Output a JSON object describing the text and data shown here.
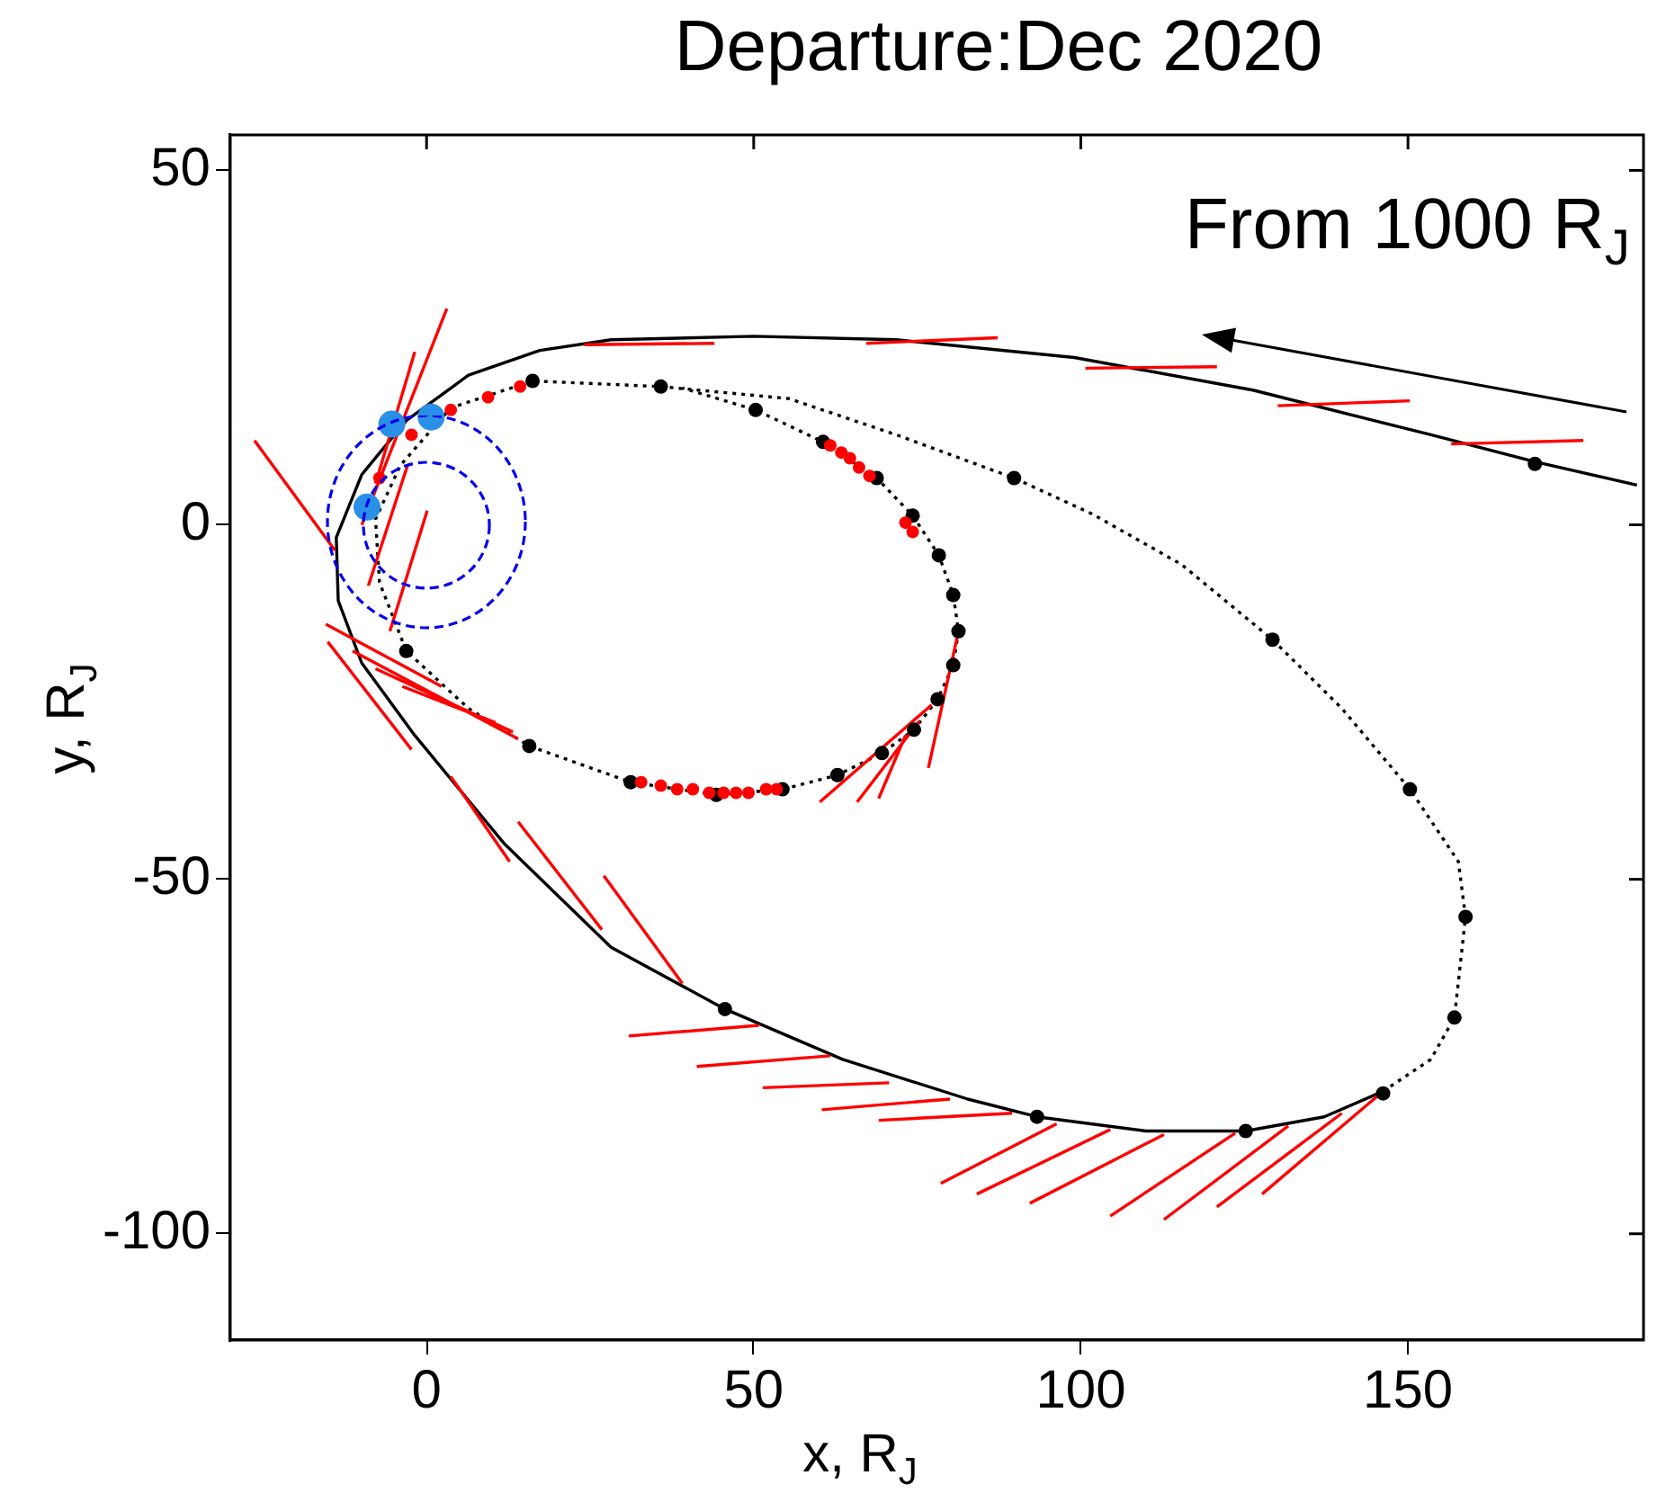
{
  "chart_data": {
    "type": "line",
    "title": "Departure:Dec 2020",
    "xlabel": "x, R$_{J}$",
    "ylabel": "y, R$_{J}$",
    "xlim": [
      -30,
      186
    ],
    "ylim": [
      -115,
      55
    ],
    "xticks": [
      0,
      50,
      100,
      150
    ],
    "yticks": [
      -100,
      -50,
      0,
      50
    ],
    "annotations": [
      "From 1000 R$_{J}$"
    ],
    "series": [
      {
        "type": "line",
        "color": "#000000",
        "line_style": "solid",
        "marker": "none",
        "x": [
          185.0,
          169.4,
          153.5,
          126.3,
          99.0,
          71.8,
          50.0,
          28.2,
          17.3,
          6.4,
          -3.1,
          -9.9,
          -13.8,
          -13.5,
          -9.9,
          -1.8,
          11.8,
          28.2,
          45.6,
          63.6,
          82.7,
          93.3,
          109.9,
          125.2,
          137.2,
          146.2
        ],
        "values": [
          5.6,
          8.9,
          12.7,
          19.0,
          23.6,
          26.1,
          26.6,
          26.1,
          24.6,
          21.1,
          14.7,
          7.1,
          -1.8,
          -10.7,
          -19.5,
          -29.7,
          -44.9,
          -59.6,
          -68.3,
          -75.4,
          -81.0,
          -83.5,
          -85.5,
          -85.5,
          -83.5,
          -79.9
        ]
      },
      {
        "type": "line",
        "color": "#000000",
        "line_style": "dotted",
        "marker": "none",
        "x": [
          146.2,
          153.5,
          157.1,
          158.8,
          157.7,
          150.3,
          139.9,
          129.3,
          115.4,
          101.8,
          89.8,
          71.8,
          55.4,
          35.8,
          16.2,
          3.7,
          -4.0,
          -7.8,
          -7.2,
          -3.1,
          6.4,
          15.7,
          31.2,
          44.3,
          54.4,
          62.8,
          69.6,
          74.5,
          78.1,
          80.5,
          81.3,
          80.5,
          78.3,
          74.3,
          68.8,
          60.6,
          50.3,
          39.1
        ],
        "values": [
          -79.9,
          -75.4,
          -69.5,
          -55.3,
          -47.5,
          -37.3,
          -25.9,
          -16.2,
          -5.6,
          1.5,
          6.6,
          12.7,
          17.8,
          19.5,
          20.3,
          16.5,
          8.4,
          0.8,
          -8.1,
          -17.8,
          -25.9,
          -31.2,
          -36.3,
          -38.1,
          -37.3,
          -35.3,
          -32.2,
          -28.9,
          -24.6,
          -19.8,
          -15.0,
          -9.9,
          -4.3,
          1.3,
          6.6,
          11.7,
          16.2,
          19.3
        ]
      },
      {
        "type": "line",
        "color": "#ff0000",
        "line_style": "solid",
        "marker": "none",
        "x": [
          24.1,
          44.0,
          null,
          67.2,
          87.3,
          null,
          100.7,
          120.8,
          null,
          130.1,
          150.3,
          null,
          156.6,
          176.8,
          null,
          -26.3,
          -14.0,
          null,
          -8.9,
          -2.9,
          null,
          -5.6,
          0.1,
          null,
          -9.9,
          3.1,
          null,
          -7.8,
          -1.8,
          null,
          2.3,
          -15.4,
          null,
          -2.3,
          -15.1,
          null,
          14.0,
          -11.3,
          null,
          13.2,
          -7.8,
          null,
          10.5,
          -3.7,
          null,
          12.7,
          3.7,
          null,
          26.8,
          14.0,
          null,
          39.1,
          27.1,
          null,
          50.8,
          30.9,
          null,
          61.7,
          41.3,
          null,
          70.7,
          51.4,
          null,
          80.0,
          60.4,
          null,
          89.5,
          69.1,
          null,
          96.3,
          78.6,
          null,
          104.5,
          84.1,
          null,
          112.7,
          92.2,
          null,
          123.6,
          104.5,
          null,
          131.7,
          112.7,
          null,
          139.9,
          120.8,
          null,
          146.2,
          127.7,
          null,
          77.2,
          60.1,
          null,
          75.3,
          65.8,
          null,
          73.2,
          69.1,
          null,
          81.3,
          76.7
        ],
        "values": [
          25.4,
          25.6,
          null,
          25.6,
          26.4,
          null,
          22.1,
          22.3,
          null,
          16.8,
          17.5,
          null,
          11.4,
          11.9,
          null,
          11.9,
          -3.6,
          null,
          -8.6,
          8.4,
          null,
          -15.0,
          2.0,
          null,
          0,
          30.5,
          null,
          5.8,
          24.4,
          null,
          -22.8,
          -14.0,
          null,
          -31.7,
          -16.5,
          null,
          -30.2,
          -17.8,
          null,
          -29.2,
          -20.3,
          null,
          -27.9,
          -22.8,
          null,
          -47.5,
          -35.5,
          null,
          -57.1,
          -41.9,
          null,
          -64.7,
          -49.5,
          null,
          -70.6,
          -72.1,
          null,
          -74.9,
          -76.4,
          null,
          -78.7,
          -79.4,
          null,
          -81.0,
          -82.5,
          null,
          -83.0,
          -84.0,
          null,
          -84.5,
          -92.9,
          null,
          -85.3,
          -94.4,
          null,
          -86.0,
          -95.7,
          null,
          -85.8,
          -97.5,
          null,
          -84.8,
          -98.0,
          null,
          -83.0,
          -96.2,
          null,
          -79.9,
          -94.4,
          null,
          -25.4,
          -39.1,
          null,
          -27.7,
          -39.1,
          null,
          -29.7,
          -38.6,
          null,
          -15.0,
          -34.3
        ]
      },
      {
        "type": "scatter",
        "color": "#000000",
        "marker": "circle",
        "x": [
          16.2,
          35.8,
          50.3,
          60.6,
          68.8,
          74.3,
          78.3,
          80.5,
          81.3,
          80.5,
          78.1,
          74.5,
          69.6,
          62.8,
          54.4,
          44.3,
          31.2,
          15.7,
          -3.1,
          89.8,
          129.3,
          150.3,
          158.8,
          157.1,
          146.2,
          125.2,
          93.3,
          45.6,
          169.4
        ],
        "values": [
          20.3,
          19.5,
          16.2,
          11.7,
          6.6,
          1.3,
          -4.3,
          -9.9,
          -15.0,
          -19.8,
          -24.6,
          -28.9,
          -32.2,
          -35.3,
          -37.3,
          -38.1,
          -36.3,
          -31.2,
          -17.8,
          6.6,
          -16.2,
          -37.3,
          -55.3,
          -69.5,
          -80.2,
          -85.5,
          -83.5,
          -68.3,
          8.6
        ]
      },
      {
        "type": "scatter",
        "color": "#ff0000",
        "marker": "circle",
        "x": [
          9.4,
          14.3,
          3.7,
          -2.3,
          -7.2,
          61.7,
          63.4,
          64.7,
          66.1,
          67.7,
          73.2,
          74.3,
          32.8,
          35.8,
          38.3,
          40.7,
          43.2,
          45.4,
          47.3,
          49.2,
          51.9,
          53.5
        ],
        "values": [
          18.0,
          19.5,
          16.2,
          12.7,
          6.6,
          11.2,
          10.2,
          9.4,
          8.1,
          6.9,
          0.3,
          -1.0,
          -36.3,
          -36.8,
          -37.3,
          -37.3,
          -37.8,
          -37.8,
          -37.8,
          -37.8,
          -37.3,
          -37.3
        ]
      },
      {
        "type": "scatter",
        "color": "#2a8fe6",
        "marker": "circle",
        "x": [
          -5.3,
          0.7,
          -9.1
        ],
        "values": [
          14.2,
          15.2,
          2.5
        ]
      }
    ]
  }
}
